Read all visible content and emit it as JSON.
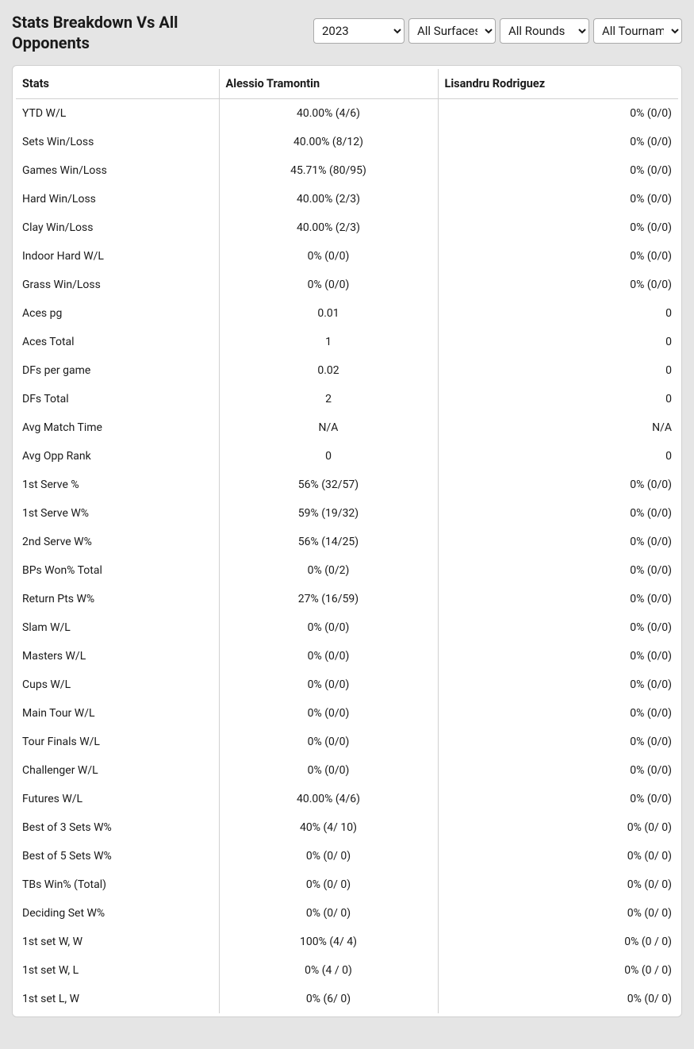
{
  "title": "Stats Breakdown Vs All Opponents",
  "filters": {
    "year": "2023",
    "surface": "All Surfaces",
    "round": "All Rounds",
    "tournament": "All Tournaments"
  },
  "player1": "Alessio Tramontin",
  "player2": "Lisandru Rodriguez",
  "columns": [
    "Stats"
  ],
  "rows": [
    {
      "stat": "YTD W/L",
      "p1": "40.00% (4/6)",
      "p2": "0% (0/0)"
    },
    {
      "stat": "Sets Win/Loss",
      "p1": "40.00% (8/12)",
      "p2": "0% (0/0)"
    },
    {
      "stat": "Games Win/Loss",
      "p1": "45.71% (80/95)",
      "p2": "0% (0/0)"
    },
    {
      "stat": "Hard Win/Loss",
      "p1": "40.00% (2/3)",
      "p2": "0% (0/0)"
    },
    {
      "stat": "Clay Win/Loss",
      "p1": "40.00% (2/3)",
      "p2": "0% (0/0)"
    },
    {
      "stat": "Indoor Hard W/L",
      "p1": "0% (0/0)",
      "p2": "0% (0/0)"
    },
    {
      "stat": "Grass Win/Loss",
      "p1": "0% (0/0)",
      "p2": "0% (0/0)"
    },
    {
      "stat": "Aces pg",
      "p1": "0.01",
      "p2": "0"
    },
    {
      "stat": "Aces Total",
      "p1": "1",
      "p2": "0"
    },
    {
      "stat": "DFs per game",
      "p1": "0.02",
      "p2": "0"
    },
    {
      "stat": "DFs Total",
      "p1": "2",
      "p2": "0"
    },
    {
      "stat": "Avg Match Time",
      "p1": "N/A",
      "p2": "N/A"
    },
    {
      "stat": "Avg Opp Rank",
      "p1": "0",
      "p2": "0"
    },
    {
      "stat": "1st Serve %",
      "p1": "56% (32/57)",
      "p2": "0% (0/0)"
    },
    {
      "stat": "1st Serve W%",
      "p1": "59% (19/32)",
      "p2": "0% (0/0)"
    },
    {
      "stat": "2nd Serve W%",
      "p1": "56% (14/25)",
      "p2": "0% (0/0)"
    },
    {
      "stat": "BPs Won% Total",
      "p1": "0% (0/2)",
      "p2": "0% (0/0)"
    },
    {
      "stat": "Return Pts W%",
      "p1": "27% (16/59)",
      "p2": "0% (0/0)"
    },
    {
      "stat": "Slam W/L",
      "p1": "0% (0/0)",
      "p2": "0% (0/0)"
    },
    {
      "stat": "Masters W/L",
      "p1": "0% (0/0)",
      "p2": "0% (0/0)"
    },
    {
      "stat": "Cups W/L",
      "p1": "0% (0/0)",
      "p2": "0% (0/0)"
    },
    {
      "stat": "Main Tour W/L",
      "p1": "0% (0/0)",
      "p2": "0% (0/0)"
    },
    {
      "stat": "Tour Finals W/L",
      "p1": "0% (0/0)",
      "p2": "0% (0/0)"
    },
    {
      "stat": "Challenger W/L",
      "p1": "0% (0/0)",
      "p2": "0% (0/0)"
    },
    {
      "stat": "Futures W/L",
      "p1": "40.00% (4/6)",
      "p2": "0% (0/0)"
    },
    {
      "stat": "Best of 3 Sets W%",
      "p1": "40% (4/ 10)",
      "p2": "0% (0/ 0)"
    },
    {
      "stat": "Best of 5 Sets W%",
      "p1": "0% (0/ 0)",
      "p2": "0% (0/ 0)"
    },
    {
      "stat": "TBs Win% (Total)",
      "p1": "0% (0/ 0)",
      "p2": "0% (0/ 0)"
    },
    {
      "stat": "Deciding Set W%",
      "p1": "0% (0/ 0)",
      "p2": "0% (0/ 0)"
    },
    {
      "stat": "1st set W, W",
      "p1": "100% (4/ 4)",
      "p2": "0% (0 / 0)"
    },
    {
      "stat": "1st set W, L",
      "p1": "0% (4 / 0)",
      "p2": "0% (0 / 0)"
    },
    {
      "stat": "1st set L, W",
      "p1": "0% (6/ 0)",
      "p2": "0% (0/ 0)"
    }
  ]
}
